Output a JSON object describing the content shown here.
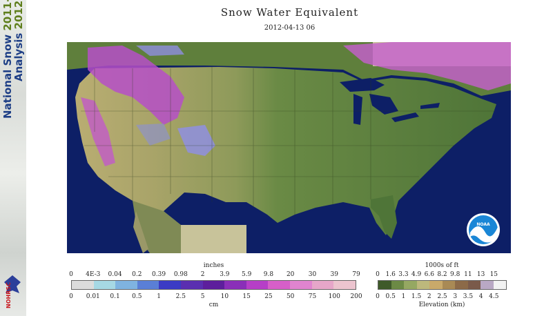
{
  "sidebar": {
    "line1_a": "National Snow ",
    "line1_b": "2011-",
    "line2_a": "Analysis ",
    "line2_b": "2012",
    "logo_text": "NOHRSC"
  },
  "header": {
    "title": "Snow Water Equivalent",
    "timestamp": "2012-04-13 06"
  },
  "map": {
    "logo_text": "NOAA",
    "colors": {
      "ocean": "#0d1f66",
      "lowland": "#5b7d3e",
      "plains": "#7d944f",
      "high": "#b9ad72",
      "snow_deep": "#c84fc8",
      "snow_mid": "#a24fd0",
      "snow_light": "#8b8fe0",
      "outside": "#c8c39a"
    }
  },
  "swe_legend": {
    "top_unit": "inches",
    "top_ticks": [
      "0",
      "4E-3",
      "0.04",
      "0.2",
      "0.39",
      "0.98",
      "2",
      "3.9",
      "5.9",
      "9.8",
      "20",
      "30",
      "39",
      "79"
    ],
    "bottom_unit": "cm",
    "bottom_ticks": [
      "0",
      "0.01",
      "0.1",
      "0.5",
      "1",
      "2.5",
      "5",
      "10",
      "15",
      "25",
      "50",
      "75",
      "100",
      "200"
    ],
    "colors": [
      "#dcdcdc",
      "#a6d8e4",
      "#7fb3e0",
      "#5a7fd6",
      "#3b3bc4",
      "#5a2fb0",
      "#5d1f9c",
      "#8a2fb8",
      "#b63fc7",
      "#d65fc9",
      "#e084cf",
      "#e6a6c9",
      "#ecc4cf"
    ]
  },
  "elev_legend": {
    "top_unit": "1000s of ft",
    "top_ticks": [
      "0",
      "1.6",
      "3.3",
      "4.9",
      "6.6",
      "8.2",
      "9.8",
      "11",
      "13",
      "15"
    ],
    "bottom_unit": "Elevation (km)",
    "bottom_ticks": [
      "0",
      "0.5",
      "1",
      "1.5",
      "2",
      "2.5",
      "3",
      "3.5",
      "4",
      "4.5"
    ],
    "colors": [
      "#3f5a2a",
      "#6c8a45",
      "#95a862",
      "#bdb87c",
      "#c9a96a",
      "#a98a55",
      "#8c6a48",
      "#7a5a4a",
      "#b9a8c4",
      "#f2f2f2"
    ]
  }
}
